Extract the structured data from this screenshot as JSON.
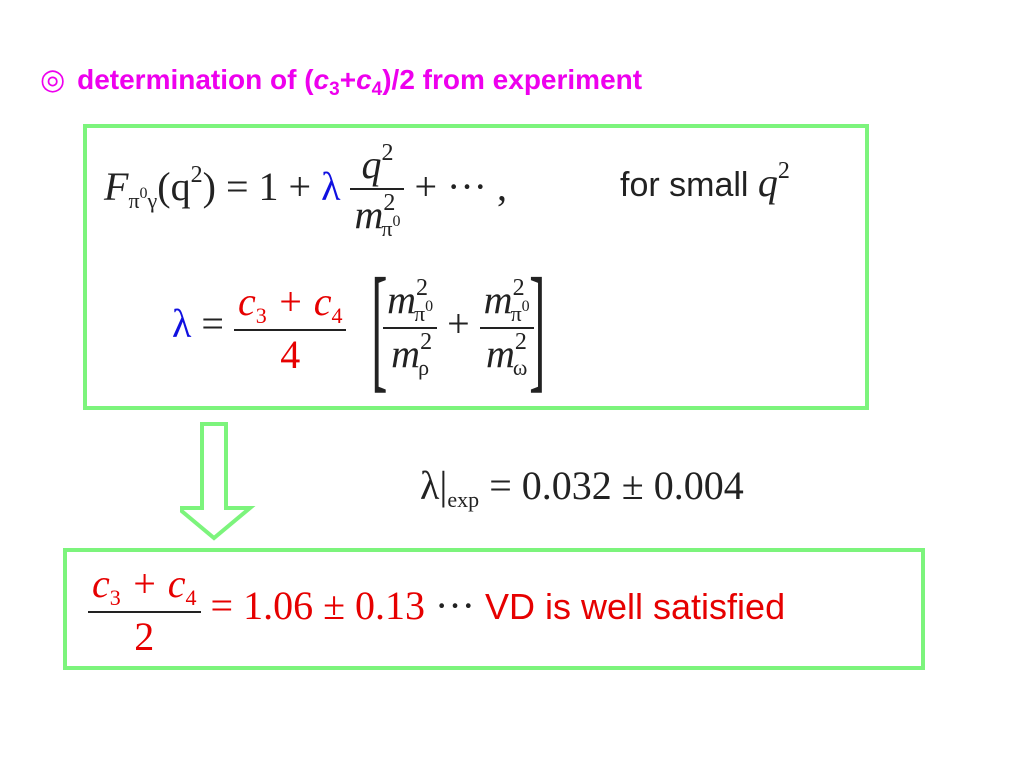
{
  "title": {
    "bullet": "◎",
    "prefix": "determination of (",
    "c3_letter": "c",
    "c3_sub": "3",
    "plus": "+",
    "c4_letter": "c",
    "c4_sub": "4",
    "suffix": ")/2 from experiment"
  },
  "eq1": {
    "F": "F",
    "F_sub_pi": "π",
    "F_sub_zero": "0",
    "F_sub_gamma": "γ",
    "lhs_arg": "(q",
    "lhs_sup": "2",
    "lhs_close": ")",
    "equals_one_plus": " = 1 + ",
    "lambda": "λ",
    "num_q": "q",
    "num_sup": "2",
    "den_m": "m",
    "den_sup": "2",
    "den_sub": "π",
    "den_sub_sup": "0",
    "tail": " + ··· ,",
    "note": "for small ",
    "note_q": "q",
    "note_sup": "2"
  },
  "eq2": {
    "lambda": "λ",
    "equals": " = ",
    "num": "c",
    "num_sub3": "3",
    "num_plus": " + c",
    "num_sub4": "4",
    "den": "4",
    "t1_num_m": "m",
    "t1_num_sup": "2",
    "t1_num_sub": "π",
    "t1_num_subsup": "0",
    "t1_den_m": "m",
    "t1_den_sup": "2",
    "t1_den_sub": "ρ",
    "plus": " + ",
    "t2_num_m": "m",
    "t2_num_sup": "2",
    "t2_num_sub": "π",
    "t2_num_subsup": "0",
    "t2_den_m": "m",
    "t2_den_sup": "2",
    "t2_den_sub": "ω"
  },
  "eq3": {
    "lambda": "λ",
    "bar": "|",
    "sub": "exp",
    "value": " = 0.032 ± 0.004"
  },
  "eq4": {
    "num": "c",
    "num_sub3": "3",
    "num_plus": " + c",
    "num_sub4": "4",
    "den": "2",
    "value": " = 1.06 ± 0.13 ",
    "dots": "···",
    "conclusion": " VD is well satisfied"
  },
  "colors": {
    "title": "#ee00ee",
    "box_border": "#7cf47c",
    "red": "#e60000",
    "blue": "#1010e0"
  }
}
